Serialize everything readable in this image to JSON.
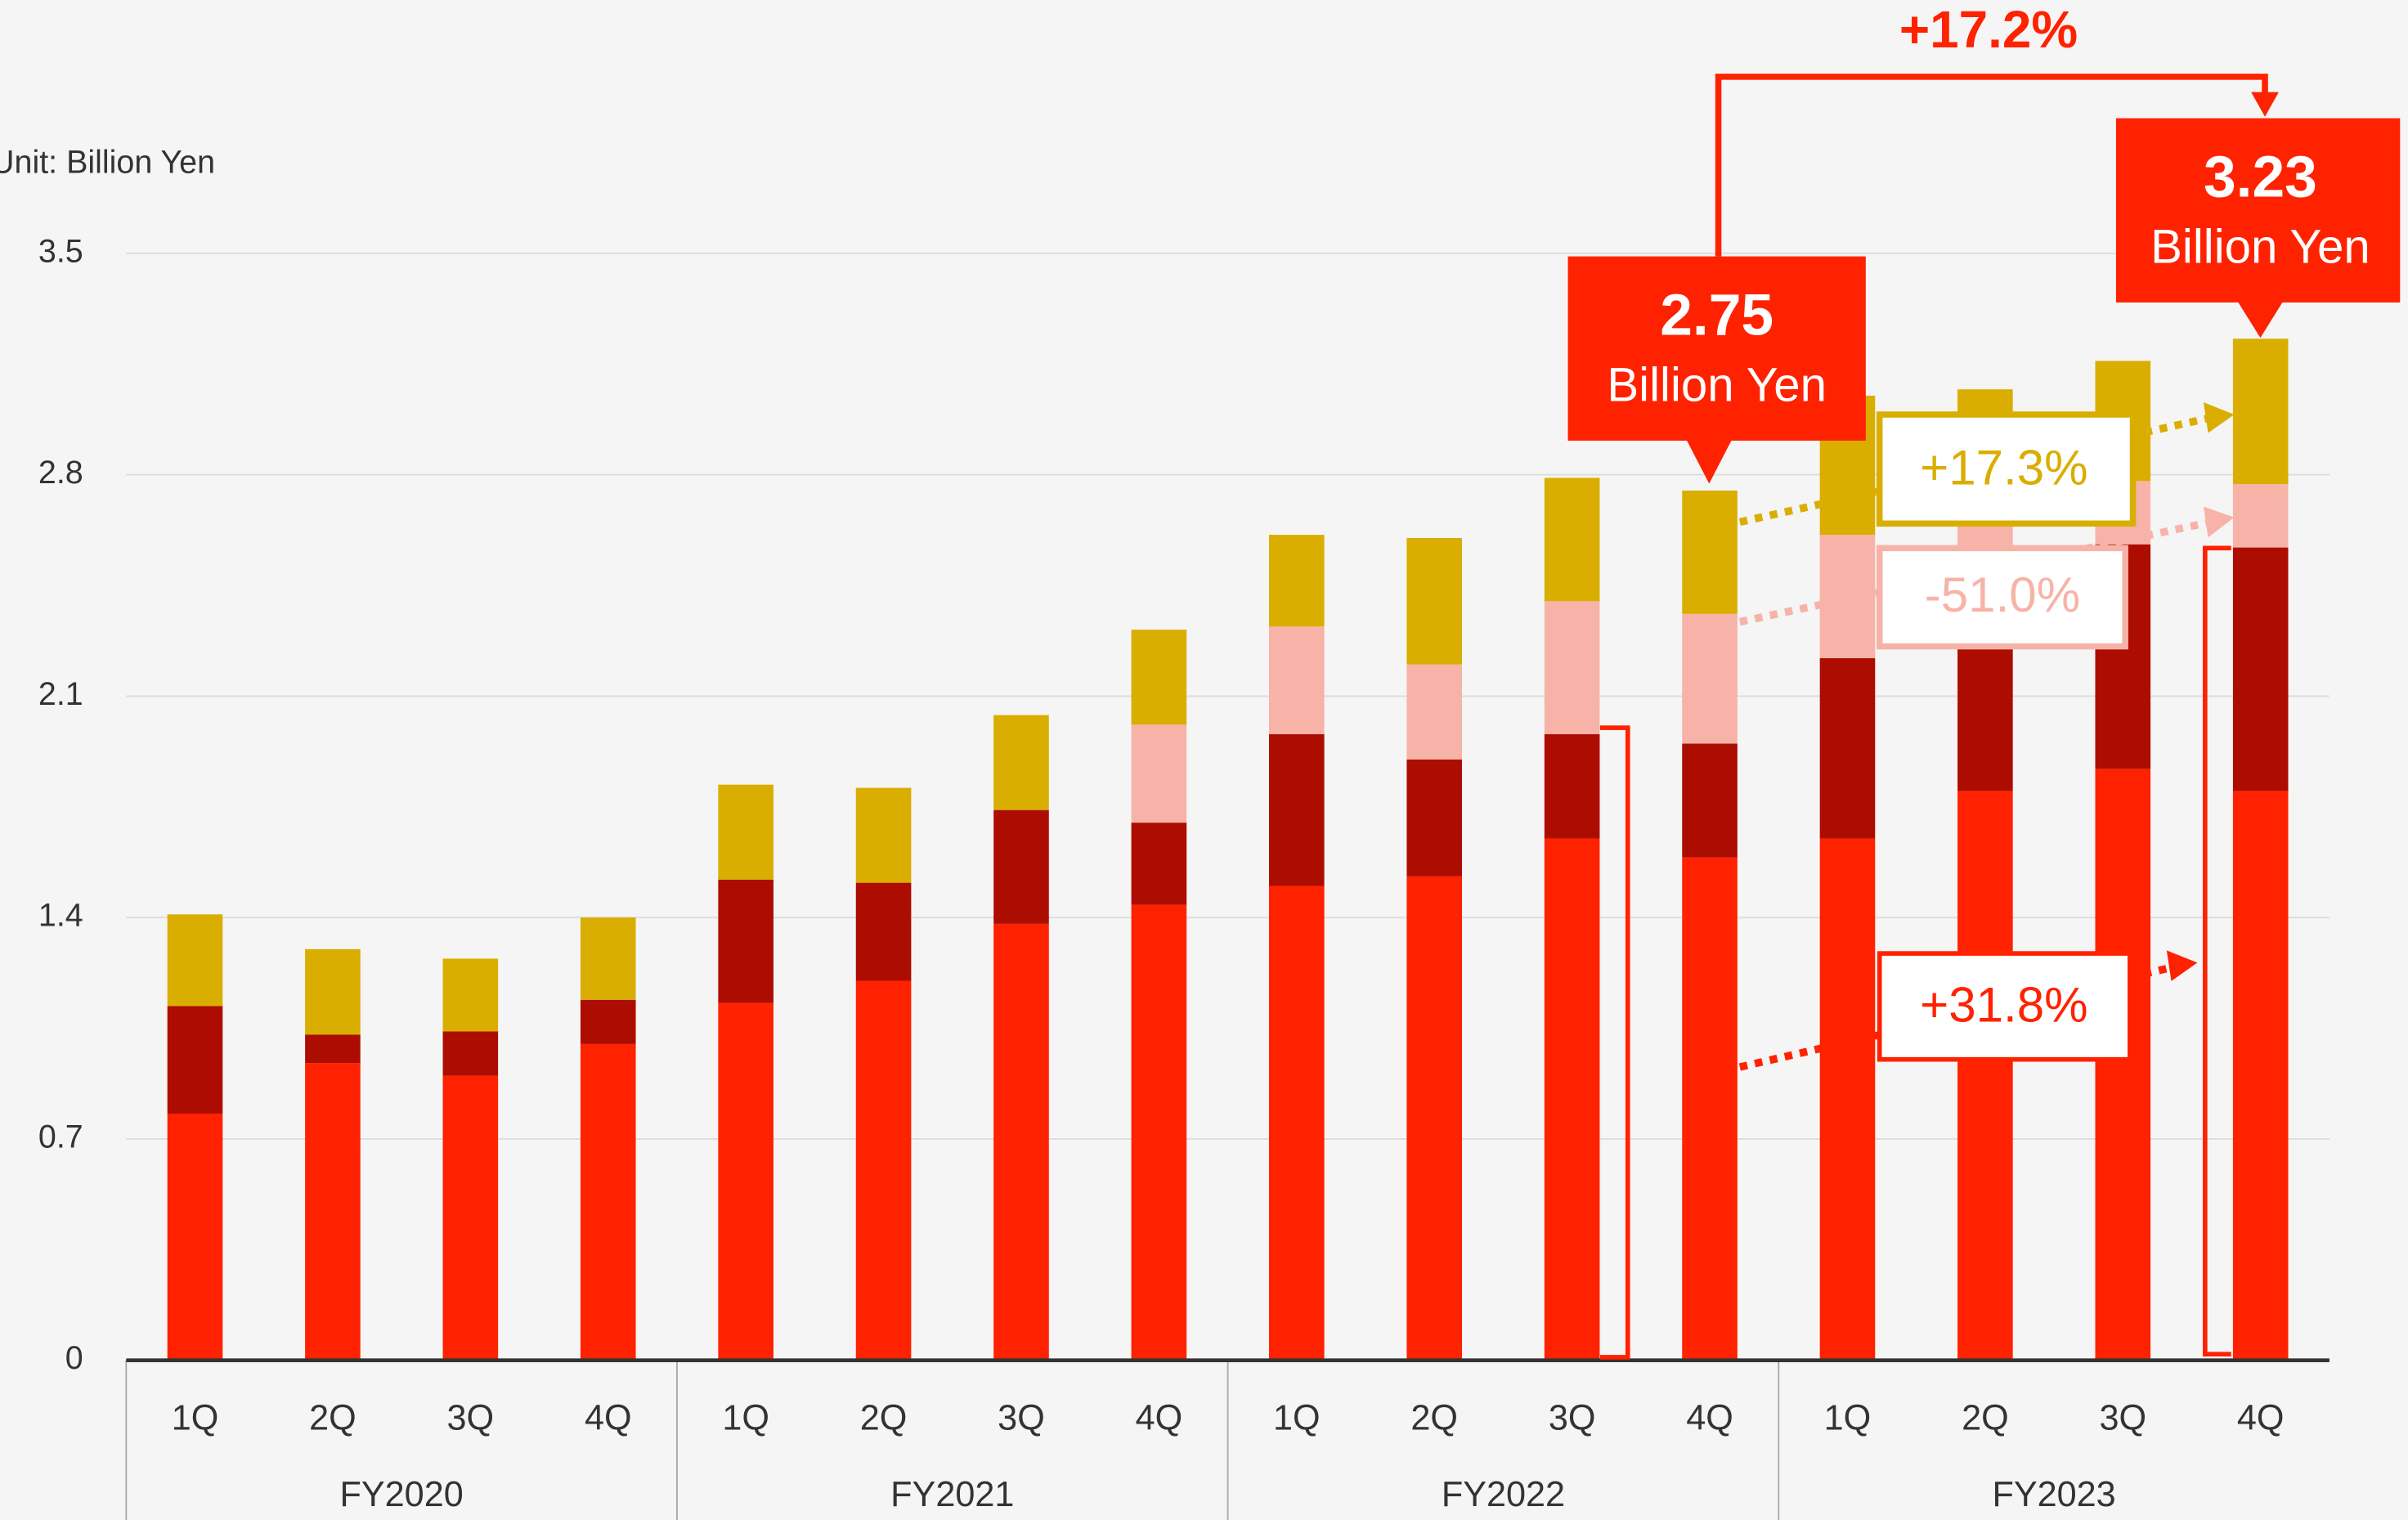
{
  "chart_data": {
    "type": "stacked_bar",
    "categories": [
      "1Q",
      "2Q",
      "3Q",
      "4Q",
      "1Q",
      "2Q",
      "3Q",
      "4Q",
      "1Q",
      "2Q",
      "3Q",
      "4Q",
      "1Q",
      "2Q",
      "3Q",
      "4Q"
    ],
    "groups": [
      "FY2020",
      "FY2021",
      "FY2022",
      "FY2023"
    ],
    "series": [
      {
        "color": "#ff2200",
        "values": [
          0.78,
          0.94,
          0.9,
          1.0,
          1.13,
          1.2,
          1.38,
          1.44,
          1.5,
          1.53,
          1.65,
          1.59,
          1.65,
          1.8,
          1.87,
          1.8
        ]
      },
      {
        "color": "#ad0d00",
        "values": [
          0.34,
          0.09,
          0.14,
          0.14,
          0.39,
          0.31,
          0.36,
          0.26,
          0.48,
          0.37,
          0.33,
          0.36,
          0.57,
          0.49,
          0.71,
          0.77
        ]
      },
      {
        "color": "#f7b3a8",
        "values": [
          0,
          0,
          0,
          0,
          0,
          0,
          0,
          0.31,
          0.34,
          0.3,
          0.42,
          0.41,
          0.39,
          0.36,
          0.2,
          0.2
        ]
      },
      {
        "color": "#d9ae00",
        "values": [
          0.29,
          0.27,
          0.23,
          0.26,
          0.3,
          0.3,
          0.3,
          0.3,
          0.29,
          0.4,
          0.39,
          0.39,
          0.44,
          0.42,
          0.38,
          0.46
        ]
      }
    ],
    "ylim": [
      0,
      3.5
    ],
    "yticks": [
      0,
      0.7,
      1.4,
      2.1,
      2.8,
      3.5
    ],
    "grid": true,
    "annotations": {
      "unit": "Unit: Billion Yen",
      "total_growth": "+17.2%",
      "fy22_total": "2.75",
      "fy22_unit": "Billion Yen",
      "fy23_total": "3.23",
      "fy23_unit": "Billion Yen",
      "gold_growth": "+17.3%",
      "pink_growth": "-51.0%",
      "red_growth": "+31.8%"
    }
  }
}
